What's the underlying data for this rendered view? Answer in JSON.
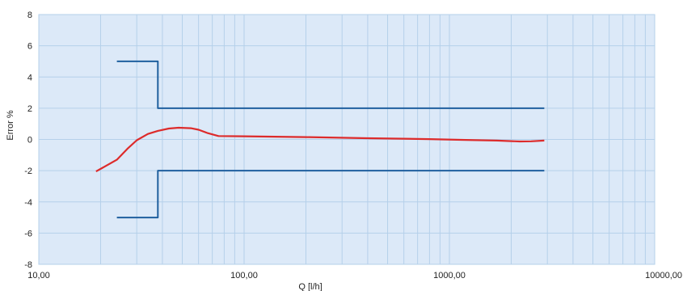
{
  "chart_data": {
    "type": "line",
    "title": "",
    "xlabel": "Q [l/h]",
    "ylabel": "Error %",
    "x_scale": "log",
    "xlim": [
      10,
      10000
    ],
    "ylim": [
      -8,
      8
    ],
    "grid": true,
    "legend": "none",
    "x_tick_labels": [
      "10,00",
      "100,00",
      "1000,00",
      "10000,00"
    ],
    "y_tick_labels": [
      "8",
      "6",
      "4",
      "2",
      "0",
      "-2",
      "-4",
      "-6",
      "-8"
    ],
    "colors": {
      "plot_background": "#dce9f8",
      "grid": "#b5d0ea",
      "limit_lines": "#1f5f9e",
      "error_curve": "#dd2b2b"
    },
    "series": [
      {
        "role": "upper-limit",
        "x": [
          24,
          38,
          38,
          2900
        ],
        "y": [
          5,
          5,
          2,
          2
        ]
      },
      {
        "role": "lower-limit",
        "x": [
          24,
          38,
          38,
          2900
        ],
        "y": [
          -5,
          -5,
          -2,
          -2
        ]
      },
      {
        "role": "error-curve",
        "x": [
          19,
          24,
          27,
          30,
          34,
          38,
          43,
          48,
          55,
          60,
          66,
          75,
          100,
          200,
          400,
          800,
          1200,
          1700,
          2200,
          2500,
          2900
        ],
        "y": [
          -2.05,
          -1.3,
          -0.6,
          -0.05,
          0.35,
          0.55,
          0.7,
          0.75,
          0.72,
          0.62,
          0.42,
          0.22,
          0.2,
          0.15,
          0.08,
          0.02,
          -0.03,
          -0.07,
          -0.13,
          -0.12,
          -0.07
        ]
      }
    ]
  }
}
